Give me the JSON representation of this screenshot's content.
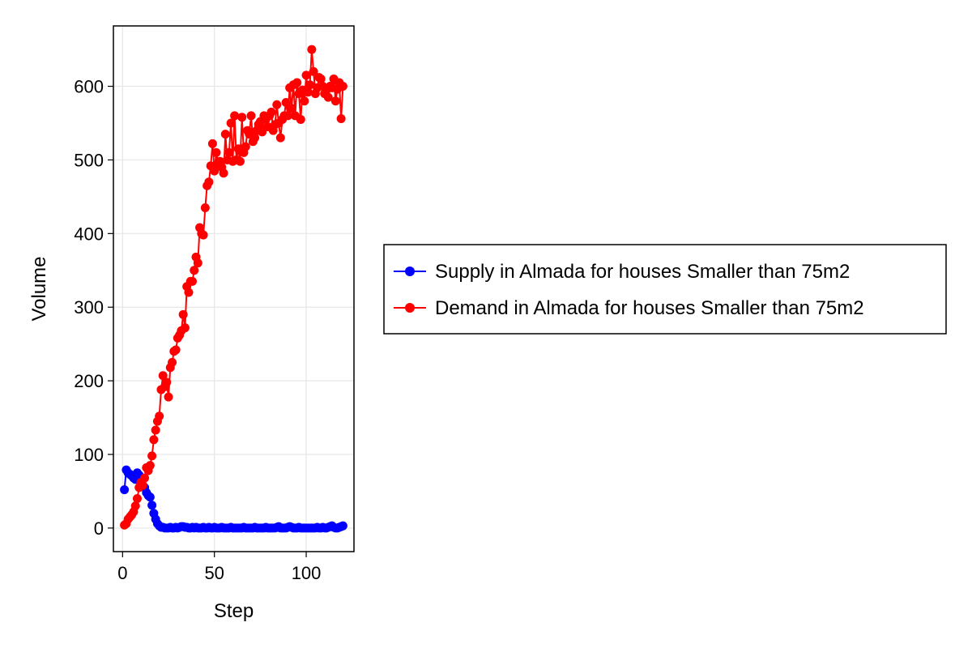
{
  "chart_data": {
    "type": "line",
    "title": "",
    "xlabel": "Step",
    "ylabel": "Volume",
    "xlim": [
      -5,
      126
    ],
    "ylim": [
      -32,
      682
    ],
    "x_ticks": [
      0,
      50,
      100
    ],
    "y_ticks": [
      0,
      100,
      200,
      300,
      400,
      500,
      600
    ],
    "grid": true,
    "legend_position": "right",
    "series": [
      {
        "name": "Supply in Almada for houses Smaller than 75m2",
        "color": "#0000ff",
        "marker": "circle",
        "x": [
          1,
          2,
          3,
          4,
          5,
          6,
          7,
          8,
          9,
          10,
          11,
          12,
          13,
          14,
          15,
          16,
          17,
          18,
          19,
          20,
          21,
          22,
          23,
          24,
          25,
          26,
          27,
          28,
          29,
          30,
          31,
          32,
          33,
          34,
          35,
          36,
          37,
          38,
          39,
          40,
          41,
          42,
          43,
          44,
          45,
          46,
          47,
          48,
          49,
          50,
          51,
          52,
          53,
          54,
          55,
          56,
          57,
          58,
          59,
          60,
          61,
          62,
          63,
          64,
          65,
          66,
          67,
          68,
          69,
          70,
          71,
          72,
          73,
          74,
          75,
          76,
          77,
          78,
          79,
          80,
          81,
          82,
          83,
          84,
          85,
          86,
          87,
          88,
          89,
          90,
          91,
          92,
          93,
          94,
          95,
          96,
          97,
          98,
          99,
          100,
          101,
          102,
          103,
          104,
          105,
          106,
          107,
          108,
          109,
          110,
          111,
          112,
          113,
          114,
          115,
          116,
          117,
          118,
          119,
          120
        ],
        "y": [
          52,
          79,
          75,
          73,
          71,
          68,
          66,
          75,
          72,
          63,
          58,
          55,
          48,
          44,
          42,
          31,
          20,
          12,
          6,
          3,
          1,
          1,
          0,
          0,
          0,
          1,
          0,
          0,
          1,
          0,
          1,
          2,
          2,
          1,
          1,
          0,
          0,
          1,
          0,
          1,
          0,
          0,
          0,
          1,
          0,
          0,
          1,
          0,
          0,
          1,
          0,
          0,
          0,
          1,
          0,
          0,
          0,
          0,
          1,
          0,
          0,
          0,
          0,
          0,
          0,
          1,
          0,
          0,
          0,
          0,
          0,
          1,
          0,
          0,
          0,
          0,
          0,
          1,
          0,
          0,
          0,
          0,
          0,
          1,
          2,
          0,
          0,
          0,
          0,
          1,
          2,
          1,
          0,
          0,
          0,
          1,
          0,
          0,
          0,
          0,
          0,
          0,
          0,
          0,
          0,
          1,
          0,
          0,
          1,
          0,
          0,
          1,
          2,
          3,
          1,
          0,
          0,
          1,
          2,
          3
        ]
      },
      {
        "name": "Demand in Almada for houses Smaller than 75m2",
        "color": "#ff0000",
        "marker": "circle",
        "x": [
          1,
          2,
          3,
          4,
          5,
          6,
          7,
          8,
          9,
          10,
          11,
          12,
          13,
          14,
          15,
          16,
          17,
          18,
          19,
          20,
          21,
          22,
          23,
          24,
          25,
          26,
          27,
          28,
          29,
          30,
          31,
          32,
          33,
          34,
          35,
          36,
          37,
          38,
          39,
          40,
          41,
          42,
          43,
          44,
          45,
          46,
          47,
          48,
          49,
          50,
          51,
          52,
          53,
          54,
          55,
          56,
          57,
          58,
          59,
          60,
          61,
          62,
          63,
          64,
          65,
          66,
          67,
          68,
          69,
          70,
          71,
          72,
          73,
          74,
          75,
          76,
          77,
          78,
          79,
          80,
          81,
          82,
          83,
          84,
          85,
          86,
          87,
          88,
          89,
          90,
          91,
          92,
          93,
          94,
          95,
          96,
          97,
          98,
          99,
          100,
          101,
          102,
          103,
          104,
          105,
          106,
          107,
          108,
          109,
          110,
          111,
          112,
          113,
          114,
          115,
          116,
          117,
          118,
          119,
          120
        ],
        "y": [
          4,
          6,
          12,
          15,
          18,
          22,
          30,
          40,
          55,
          62,
          58,
          68,
          82,
          78,
          85,
          98,
          120,
          133,
          145,
          152,
          188,
          207,
          192,
          198,
          178,
          218,
          225,
          240,
          242,
          258,
          262,
          268,
          290,
          272,
          328,
          320,
          335,
          335,
          350,
          368,
          360,
          408,
          400,
          398,
          435,
          465,
          470,
          492,
          522,
          485,
          510,
          495,
          498,
          490,
          482,
          535,
          500,
          510,
          550,
          498,
          560,
          500,
          515,
          498,
          558,
          510,
          518,
          540,
          535,
          560,
          525,
          530,
          540,
          548,
          552,
          538,
          560,
          555,
          545,
          560,
          565,
          540,
          548,
          575,
          550,
          530,
          555,
          560,
          578,
          560,
          598,
          570,
          602,
          560,
          605,
          590,
          555,
          595,
          580,
          615,
          592,
          602,
          650,
          620,
          590,
          598,
          612,
          610,
          600,
          590,
          595,
          585,
          600,
          598,
          610,
          580,
          596,
          605,
          556,
          600
        ]
      }
    ]
  }
}
